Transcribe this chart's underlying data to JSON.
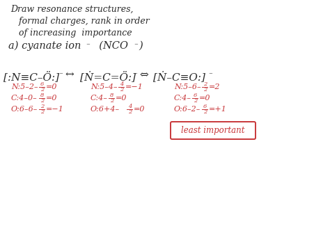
{
  "bg_color": "#ffffff",
  "text_color": "#2a2a2a",
  "red_color": "#c8373a",
  "title_lines": [
    "Draw resonance structures,",
    "   formal charges, rank in order",
    "   of increasing  importance"
  ],
  "subtitle_part1": "a) cyanate ion",
  "subtitle_sup1": "⁻",
  "subtitle_part2": "  (NCO",
  "subtitle_sup2": "⁻",
  "subtitle_part3": ")",
  "struct1": "[:N≡C–Ö:]",
  "struct1_sup": "⁻",
  "arrow1": "↔",
  "struct2": "[Ṅ=C=Ö:]",
  "struct2_sup": "⁻",
  "arrow2": "⇔",
  "struct3": "[Ṅ–C≡O:]",
  "struct3_sup": "⁻",
  "fc1_lines": [
    "N:5–2–",
    "C:4–0–",
    "O:6–6–"
  ],
  "fc1_frac": [
    "6/2=0",
    "8/2=0",
    "2/2=−1"
  ],
  "fc2_lines": [
    "N:5–4–",
    "C:4–",
    "O:6+4–"
  ],
  "fc2_frac": [
    "4/2=−1",
    "8/2=0",
    "4/2=0"
  ],
  "fc3_lines": [
    "N:5–6–",
    "C:4–",
    "O:6–2–"
  ],
  "fc3_frac": [
    "2/2=2",
    "6/2=0",
    "6/2=+1"
  ],
  "least_important": "least important"
}
